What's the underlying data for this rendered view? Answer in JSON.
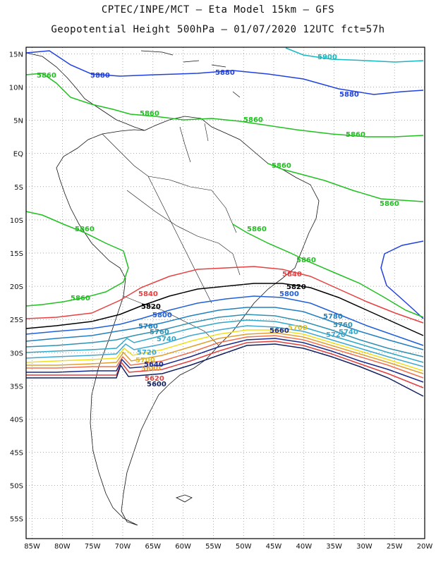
{
  "title": {
    "line1": "CPTEC/INPE/MCT –  Eta Model 15km – GFS",
    "line2": "Geopotential Height 500hPa – 01/07/2020 12UTC fct=57h"
  },
  "axes": {
    "lat_labels": [
      "15N",
      "10N",
      "5N",
      "EQ",
      "5S",
      "10S",
      "15S",
      "20S",
      "25S",
      "30S",
      "35S",
      "40S",
      "45S",
      "50S",
      "55S"
    ],
    "lon_labels": [
      "85W",
      "80W",
      "75W",
      "70W",
      "65W",
      "60W",
      "55W",
      "50W",
      "45W",
      "40W",
      "35W",
      "30W",
      "25W",
      "20W"
    ],
    "lat_range": [
      -58,
      16
    ],
    "lon_range": [
      -86,
      -20
    ],
    "grid": "dotted"
  },
  "contours": [
    {
      "value": "5900",
      "color": "#18b8c0"
    },
    {
      "value": "5880",
      "color": "#2040e0"
    },
    {
      "value": "5860",
      "color": "#20c020"
    },
    {
      "value": "5840",
      "color": "#e84040"
    },
    {
      "value": "5820",
      "color": "#000000"
    },
    {
      "value": "5800",
      "color": "#2060d8"
    },
    {
      "value": "5780",
      "color": "#2080c0"
    },
    {
      "value": "5760",
      "color": "#3090b0"
    },
    {
      "value": "5740",
      "color": "#30a8c8"
    },
    {
      "value": "5720",
      "color": "#40a8d0"
    },
    {
      "value": "5700",
      "color": "#f0e020"
    },
    {
      "value": "5680",
      "color": "#e0a030"
    },
    {
      "value": "5660",
      "color": "#f07050"
    },
    {
      "value": "5640",
      "color": "#1a2a8a"
    },
    {
      "value": "5620",
      "color": "#e04040"
    },
    {
      "value": "5600",
      "color": "#102060"
    }
  ]
}
